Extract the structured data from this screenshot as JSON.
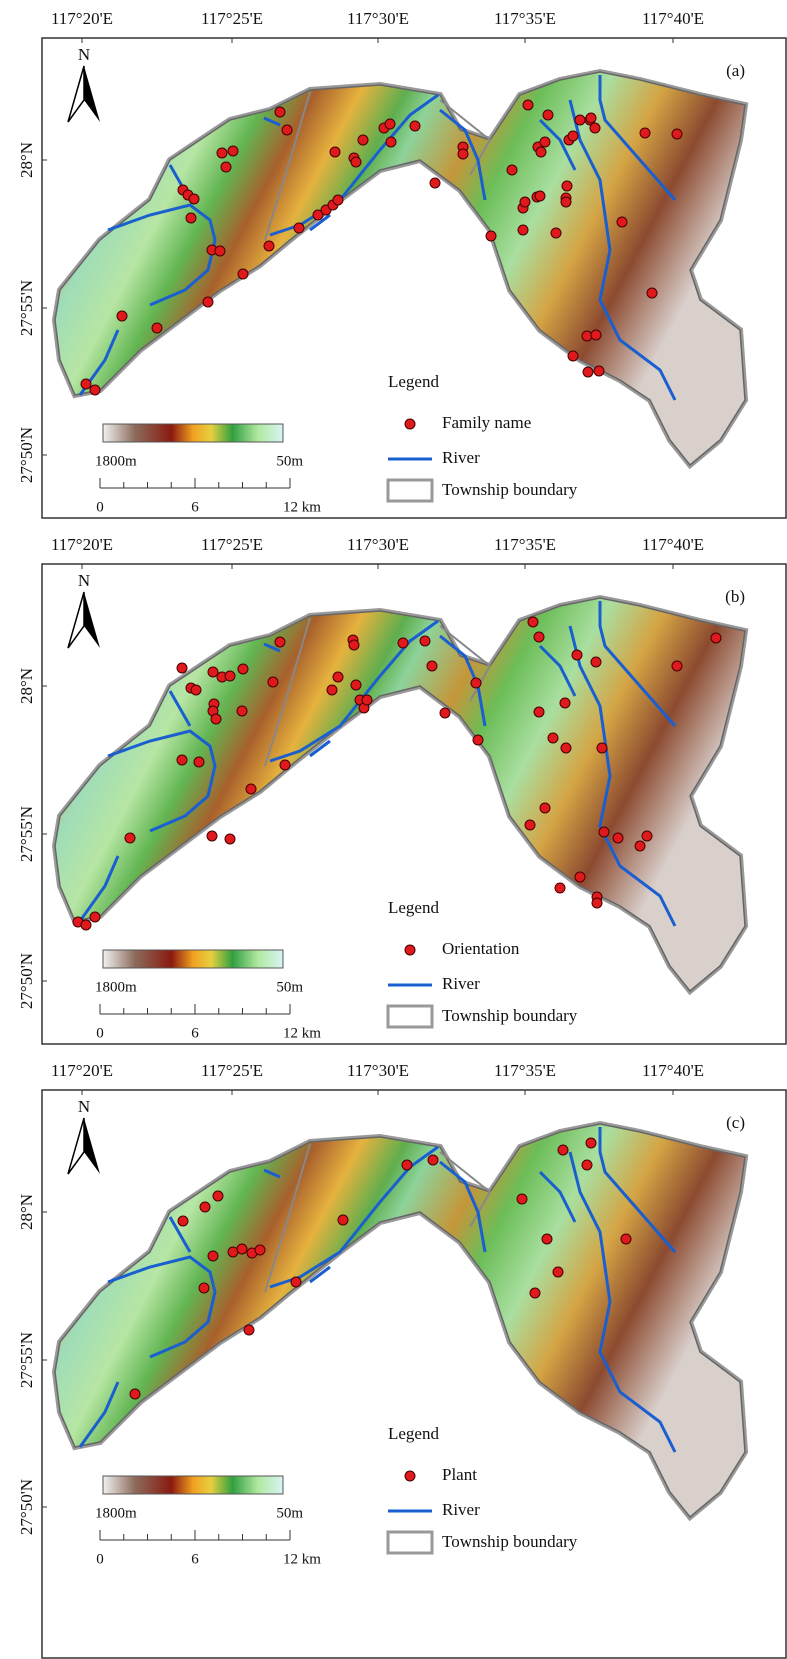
{
  "panels": [
    {
      "letter": "(a)",
      "north": "N",
      "x_ticks": [
        "117°20'E",
        "117°25'E",
        "117°30'E",
        "117°35'E",
        "117°40'E"
      ],
      "y_ticks": [
        "28°N",
        "27°55'N",
        "27°50'N"
      ],
      "legend": {
        "title": "Legend",
        "items": [
          "Family name",
          "River",
          "Township boundary"
        ]
      },
      "colorbar": {
        "high": "1800m",
        "low": "50m"
      },
      "scalebar": [
        "0",
        "6",
        "12 km"
      ]
    },
    {
      "letter": "(b)",
      "north": "N",
      "x_ticks": [
        "117°20'E",
        "117°25'E",
        "117°30'E",
        "117°35'E",
        "117°40'E"
      ],
      "y_ticks": [
        "28°N",
        "27°55'N",
        "27°50'N"
      ],
      "legend": {
        "title": "Legend",
        "items": [
          "Orientation",
          "River",
          "Township boundary"
        ]
      },
      "colorbar": {
        "high": "1800m",
        "low": "50m"
      },
      "scalebar": [
        "0",
        "6",
        "12 km"
      ]
    },
    {
      "letter": "(c)",
      "north": "N",
      "x_ticks": [
        "117°20'E",
        "117°25'E",
        "117°30'E",
        "117°35'E",
        "117°40'E"
      ],
      "y_ticks": [
        "28°N",
        "27°55'N",
        "27°50'N"
      ],
      "legend": {
        "title": "Legend",
        "items": [
          "Plant",
          "River",
          "Township boundary"
        ]
      },
      "colorbar": {
        "high": "1800m",
        "low": "50m"
      },
      "scalebar": [
        "0",
        "6",
        "12 km"
      ]
    }
  ]
}
